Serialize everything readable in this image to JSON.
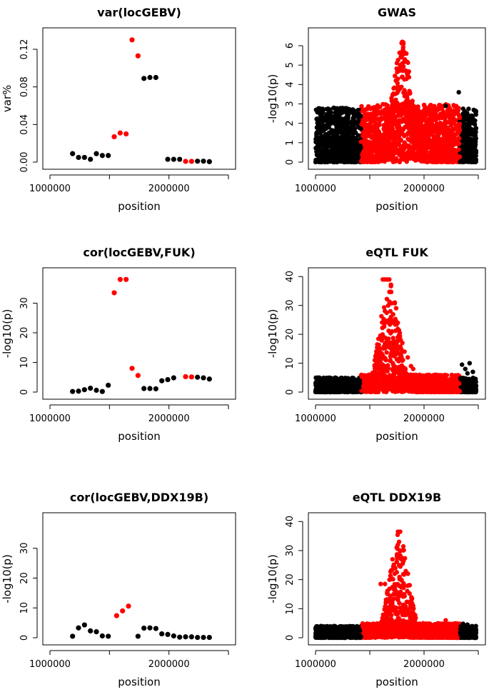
{
  "chart_data": [
    {
      "type": "scatter",
      "title": "var(locGEBV)",
      "xlabel": "position",
      "ylabel": "var%",
      "xlim": [
        1000000,
        2500000
      ],
      "ylim": [
        0,
        0.13
      ],
      "x_ticks": [
        "1000000",
        "2000000"
      ],
      "y_ticks": [
        "0.00",
        "0.04",
        "0.08",
        "0.12"
      ],
      "colors": {
        "background": "#000000",
        "highlight": "#ff0000"
      },
      "series": [
        {
          "color": "#000000",
          "points": [
            [
              1190000,
              0.009
            ],
            [
              1240000,
              0.005
            ],
            [
              1290000,
              0.005
            ],
            [
              1340000,
              0.003
            ],
            [
              1390000,
              0.009
            ],
            [
              1440000,
              0.007
            ],
            [
              1490000,
              0.007
            ],
            [
              1790000,
              0.089
            ],
            [
              1840000,
              0.09
            ],
            [
              1890000,
              0.09
            ],
            [
              1990000,
              0.003
            ],
            [
              2040000,
              0.003
            ],
            [
              2090000,
              0.003
            ],
            [
              2240000,
              0.001
            ],
            [
              2290000,
              0.001
            ],
            [
              2340000,
              0.0005
            ]
          ]
        },
        {
          "color": "#ff0000",
          "points": [
            [
              1540000,
              0.027
            ],
            [
              1590000,
              0.031
            ],
            [
              1640000,
              0.03
            ],
            [
              1690000,
              0.13
            ],
            [
              1740000,
              0.113
            ],
            [
              2140000,
              0.0008
            ],
            [
              2190000,
              0.0008
            ]
          ]
        }
      ]
    },
    {
      "type": "scatter",
      "title": "GWAS",
      "xlabel": "position",
      "ylabel": "-log10(p)",
      "xlim": [
        1000000,
        2500000
      ],
      "ylim": [
        0,
        6.3
      ],
      "x_ticks": [
        "1000000",
        "2000000"
      ],
      "y_ticks": [
        "0",
        "1",
        "2",
        "3",
        "4",
        "5",
        "6"
      ],
      "colors": {
        "background": "#000000",
        "highlight": "#ff0000"
      },
      "dense": {
        "x_range": [
          1000000,
          2480000
        ],
        "highlight_range": [
          1420000,
          2330000
        ],
        "peak": [
          1800000,
          6.2
        ],
        "n": 2500,
        "bg_max": 2.8,
        "hl_max": 3.0,
        "seed": 7
      },
      "series": [
        {
          "color": "#000000",
          "points": [
            [
              2320000,
              3.6
            ],
            [
              2360000,
              2.5
            ],
            [
              2380000,
              2.3
            ],
            [
              2200000,
              2.9
            ]
          ]
        },
        {
          "color": "#ff0000",
          "points": [
            [
              1800000,
              6.2
            ],
            [
              1810000,
              6.1
            ],
            [
              1790000,
              5.4
            ],
            [
              1780000,
              5.0
            ],
            [
              1770000,
              4.7
            ],
            [
              1760000,
              3.9
            ],
            [
              1720000,
              3.8
            ],
            [
              1700000,
              3.3
            ],
            [
              1740000,
              4.2
            ],
            [
              1800000,
              4.4
            ],
            [
              1820000,
              3.7
            ]
          ]
        }
      ]
    },
    {
      "type": "scatter",
      "title": "cor(locGEBV,FUK)",
      "xlabel": "position",
      "ylabel": "-log10(p)",
      "xlim": [
        1000000,
        2500000
      ],
      "ylim": [
        0,
        38
      ],
      "x_ticks": [
        "1000000",
        "2000000"
      ],
      "y_ticks": [
        "0",
        "10",
        "20",
        "30"
      ],
      "colors": {
        "background": "#000000",
        "highlight": "#ff0000"
      },
      "series": [
        {
          "color": "#000000",
          "points": [
            [
              1190000,
              0.2
            ],
            [
              1240000,
              0.3
            ],
            [
              1290000,
              0.8
            ],
            [
              1340000,
              1.3
            ],
            [
              1390000,
              0.6
            ],
            [
              1440000,
              0.2
            ],
            [
              1490000,
              2.3
            ],
            [
              1790000,
              1.2
            ],
            [
              1840000,
              1.2
            ],
            [
              1890000,
              1.1
            ],
            [
              1940000,
              3.8
            ],
            [
              1990000,
              4.2
            ],
            [
              2040000,
              4.8
            ],
            [
              2240000,
              5.0
            ],
            [
              2290000,
              4.8
            ],
            [
              2340000,
              4.4
            ]
          ]
        },
        {
          "color": "#ff0000",
          "points": [
            [
              1540000,
              33.5
            ],
            [
              1590000,
              38.0
            ],
            [
              1640000,
              38.0
            ],
            [
              1690000,
              8.0
            ],
            [
              1740000,
              5.6
            ],
            [
              2140000,
              5.2
            ],
            [
              2190000,
              5.1
            ]
          ]
        }
      ]
    },
    {
      "type": "scatter",
      "title": "eQTL FUK",
      "xlabel": "position",
      "ylabel": "-log10(p)",
      "xlim": [
        1000000,
        2500000
      ],
      "ylim": [
        0,
        39
      ],
      "x_ticks": [
        "1000000",
        "2000000"
      ],
      "y_ticks": [
        "0",
        "10",
        "20",
        "30",
        "40"
      ],
      "colors": {
        "background": "#000000",
        "highlight": "#ff0000"
      },
      "dense": {
        "x_range": [
          1000000,
          2480000
        ],
        "highlight_range": [
          1420000,
          2330000
        ],
        "peak": [
          1680000,
          39
        ],
        "n": 2500,
        "bg_max": 5.0,
        "hl_max": 6.0,
        "seed": 11
      },
      "series": [
        {
          "color": "#000000",
          "points": [
            [
              2350000,
              9.5
            ],
            [
              2380000,
              8.0
            ],
            [
              2420000,
              10.0
            ],
            [
              2450000,
              7.0
            ],
            [
              2400000,
              6.5
            ]
          ]
        },
        {
          "color": "#ff0000",
          "points": [
            [
              1620000,
              39
            ],
            [
              1640000,
              39
            ],
            [
              1660000,
              39
            ],
            [
              1680000,
              39
            ],
            [
              1690000,
              28.0
            ],
            [
              1695000,
              26.0
            ],
            [
              1700000,
              24.0
            ],
            [
              1705000,
              21.0
            ],
            [
              1710000,
              17.0
            ],
            [
              1720000,
              13.0
            ],
            [
              1680000,
              25.0
            ],
            [
              1670000,
              30.0
            ],
            [
              1760000,
              15.0
            ],
            [
              1800000,
              17.0
            ],
            [
              1820000,
              14.0
            ],
            [
              1850000,
              12.0
            ],
            [
              1740000,
              13.0
            ],
            [
              1780000,
              12.0
            ],
            [
              1880000,
              9.0
            ],
            [
              1900000,
              8.0
            ]
          ]
        }
      ]
    },
    {
      "type": "scatter",
      "title": "cor(locGEBV,DDX19B)",
      "xlabel": "position",
      "ylabel": "-log10(p)",
      "xlim": [
        1000000,
        2500000
      ],
      "ylim": [
        0,
        38
      ],
      "x_ticks": [
        "1000000",
        "2000000"
      ],
      "y_ticks": [
        "0",
        "10",
        "20",
        "30"
      ],
      "colors": {
        "background": "#000000",
        "highlight": "#ff0000"
      },
      "series": [
        {
          "color": "#000000",
          "points": [
            [
              1190000,
              0.5
            ],
            [
              1240000,
              3.3
            ],
            [
              1290000,
              4.3
            ],
            [
              1340000,
              2.3
            ],
            [
              1390000,
              2.0
            ],
            [
              1440000,
              0.6
            ],
            [
              1490000,
              0.5
            ],
            [
              1740000,
              0.5
            ],
            [
              1790000,
              3.2
            ],
            [
              1840000,
              3.3
            ],
            [
              1890000,
              3.1
            ],
            [
              1940000,
              1.3
            ],
            [
              1990000,
              1.1
            ],
            [
              2040000,
              0.6
            ],
            [
              2090000,
              0.2
            ],
            [
              2140000,
              0.3
            ],
            [
              2190000,
              0.3
            ],
            [
              2240000,
              0.1
            ],
            [
              2290000,
              0.1
            ],
            [
              2340000,
              0.1
            ]
          ]
        },
        {
          "color": "#ff0000",
          "points": [
            [
              1560000,
              7.4
            ],
            [
              1610000,
              9.0
            ],
            [
              1660000,
              10.6
            ]
          ]
        }
      ]
    },
    {
      "type": "scatter",
      "title": "eQTL DDX19B",
      "xlabel": "position",
      "ylabel": "-log10(p)",
      "xlim": [
        1000000,
        2500000
      ],
      "ylim": [
        0,
        39
      ],
      "x_ticks": [
        "1000000",
        "2000000"
      ],
      "y_ticks": [
        "0",
        "10",
        "20",
        "30",
        "40"
      ],
      "colors": {
        "background": "#000000",
        "highlight": "#ff0000"
      },
      "dense": {
        "x_range": [
          1000000,
          2480000
        ],
        "highlight_range": [
          1420000,
          2330000
        ],
        "peak": [
          1770000,
          36.5
        ],
        "n": 2500,
        "bg_max": 4.0,
        "hl_max": 5.0,
        "seed": 23
      },
      "series": [
        {
          "color": "#000000",
          "points": [
            [
              2360000,
              4.8
            ],
            [
              2400000,
              4.5
            ],
            [
              2440000,
              3.8
            ]
          ]
        },
        {
          "color": "#ff0000",
          "points": [
            [
              1760000,
              36.5
            ],
            [
              1780000,
              36.5
            ],
            [
              1770000,
              33.0
            ],
            [
              1780000,
              30.0
            ],
            [
              1750000,
              28.0
            ],
            [
              1790000,
              27.0
            ],
            [
              1770000,
              25.0
            ],
            [
              1730000,
              22.0
            ],
            [
              1790000,
              20.0
            ],
            [
              1640000,
              18.5
            ],
            [
              1600000,
              18.5
            ],
            [
              1720000,
              15.0
            ],
            [
              1760000,
              13.0
            ],
            [
              1810000,
              11.0
            ],
            [
              1700000,
              12.0
            ],
            [
              1850000,
              8.0
            ],
            [
              1880000,
              7.0
            ],
            [
              2200000,
              6.0
            ]
          ]
        }
      ]
    }
  ]
}
